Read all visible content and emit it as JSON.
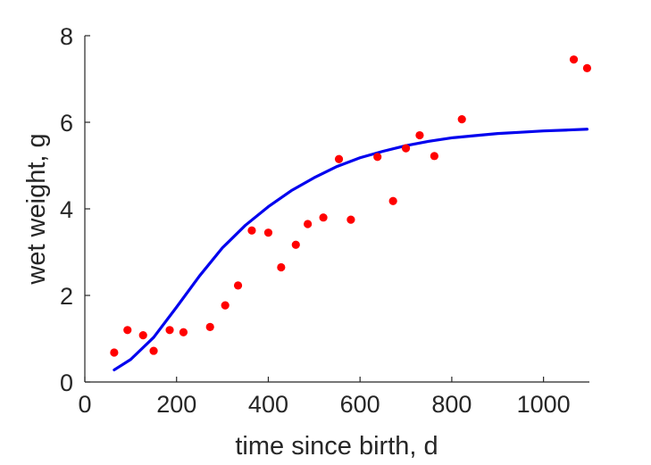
{
  "chart_data": {
    "type": "scatter",
    "xlabel": "time since birth, d",
    "ylabel": "wet weight, g",
    "xlim": [
      0,
      1100
    ],
    "ylim": [
      0,
      8
    ],
    "xticks": [
      0,
      200,
      400,
      600,
      800,
      1000
    ],
    "yticks": [
      0,
      2,
      4,
      6,
      8
    ],
    "grid": false,
    "legend": "none",
    "colors": {
      "points": "#ff0000",
      "curve": "#0000ee",
      "axes": "#262626"
    },
    "series": [
      {
        "kind": "points",
        "x": [
          64,
          93,
          127,
          150,
          185,
          215,
          273,
          306,
          334,
          364,
          400,
          428,
          460,
          486,
          520,
          554,
          580,
          638,
          672,
          700,
          730,
          762,
          822,
          1066,
          1095
        ],
        "y": [
          0.68,
          1.2,
          1.08,
          0.72,
          1.2,
          1.15,
          1.27,
          1.77,
          2.23,
          3.5,
          3.45,
          2.65,
          3.17,
          3.65,
          3.8,
          5.15,
          3.75,
          5.2,
          4.18,
          5.4,
          5.7,
          5.22,
          6.07,
          7.45,
          7.25
        ]
      },
      {
        "kind": "line",
        "x": [
          64,
          100,
          150,
          200,
          250,
          300,
          350,
          400,
          450,
          500,
          550,
          600,
          650,
          700,
          750,
          800,
          850,
          900,
          950,
          1000,
          1050,
          1095
        ],
        "y": [
          0.28,
          0.52,
          1.03,
          1.73,
          2.45,
          3.1,
          3.62,
          4.05,
          4.42,
          4.72,
          4.98,
          5.18,
          5.33,
          5.46,
          5.56,
          5.64,
          5.69,
          5.74,
          5.77,
          5.8,
          5.82,
          5.84
        ]
      }
    ]
  }
}
